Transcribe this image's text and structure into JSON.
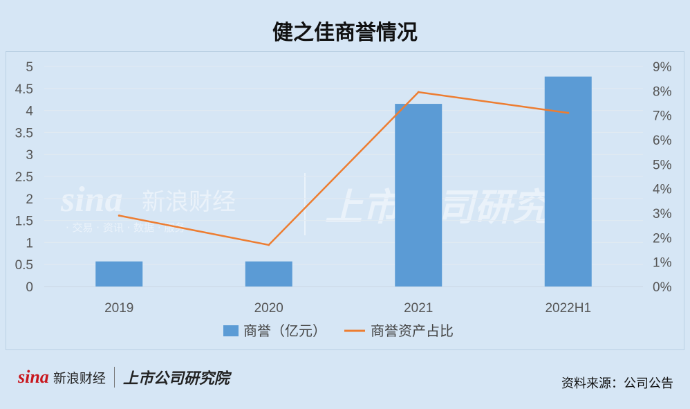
{
  "title": "健之佳商誉情况",
  "footer": {
    "logo_sina": "sina",
    "logo_sina_cn": "新浪财经",
    "logo_institute_cn": "上市公司研究院",
    "source": "资料来源：公司公告"
  },
  "watermark": {
    "sina": "sina",
    "sina_cn": "新浪财经",
    "sina_tagline": "· 交易 · 资讯 · 数据 · 服务",
    "institute_cn": "上市公司研究院"
  },
  "colors": {
    "bar": "#5b9bd5",
    "line": "#ed7d31",
    "background": "#d6e6f5"
  },
  "chart_data": {
    "type": "bar",
    "title": "健之佳商誉情况",
    "categories": [
      "2019",
      "2020",
      "2021",
      "2022H1"
    ],
    "series": [
      {
        "name": "商誉（亿元）",
        "type": "bar",
        "axis": "left",
        "values": [
          0.57,
          0.57,
          4.15,
          4.77
        ]
      },
      {
        "name": "商誉资产占比",
        "type": "line",
        "axis": "right",
        "values": [
          2.9,
          1.7,
          7.95,
          7.1
        ],
        "unit": "%"
      }
    ],
    "y_left": {
      "min": 0,
      "max": 5,
      "ticks": [
        "0",
        "0.5",
        "1",
        "1.5",
        "2",
        "2.5",
        "3",
        "3.5",
        "4",
        "4.5",
        "5"
      ]
    },
    "y_right": {
      "min": 0,
      "max": 9,
      "ticks": [
        "0%",
        "1%",
        "2%",
        "3%",
        "4%",
        "5%",
        "6%",
        "7%",
        "8%",
        "9%"
      ]
    },
    "grid": true,
    "legend_position": "bottom"
  }
}
